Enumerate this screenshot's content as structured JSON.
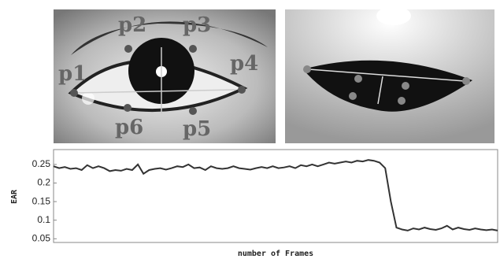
{
  "eye_labels": {
    "p1": "p1",
    "p2": "p2",
    "p3": "p3",
    "p4": "p4",
    "p5": "p5",
    "p6": "p6"
  },
  "chart_data": {
    "type": "line",
    "ylabel": "EAR",
    "xlabel": "number of Frames",
    "values": [
      0.245,
      0.24,
      0.243,
      0.238,
      0.24,
      0.235,
      0.248,
      0.24,
      0.245,
      0.24,
      0.232,
      0.235,
      0.233,
      0.238,
      0.235,
      0.25,
      0.225,
      0.235,
      0.238,
      0.24,
      0.236,
      0.24,
      0.245,
      0.243,
      0.25,
      0.24,
      0.242,
      0.235,
      0.245,
      0.24,
      0.238,
      0.24,
      0.245,
      0.24,
      0.238,
      0.236,
      0.24,
      0.243,
      0.24,
      0.245,
      0.24,
      0.242,
      0.245,
      0.24,
      0.248,
      0.245,
      0.25,
      0.245,
      0.25,
      0.255,
      0.252,
      0.255,
      0.258,
      0.255,
      0.26,
      0.258,
      0.262,
      0.26,
      0.255,
      0.24,
      0.15,
      0.08,
      0.075,
      0.072,
      0.078,
      0.075,
      0.08,
      0.076,
      0.074,
      0.078,
      0.085,
      0.075,
      0.08,
      0.076,
      0.074,
      0.078,
      0.075,
      0.073,
      0.075,
      0.072
    ],
    "color": "#333333",
    "ylim": [
      0.04,
      0.29
    ],
    "yticks": [
      0.05,
      0.1,
      0.15,
      0.2,
      0.25
    ]
  }
}
